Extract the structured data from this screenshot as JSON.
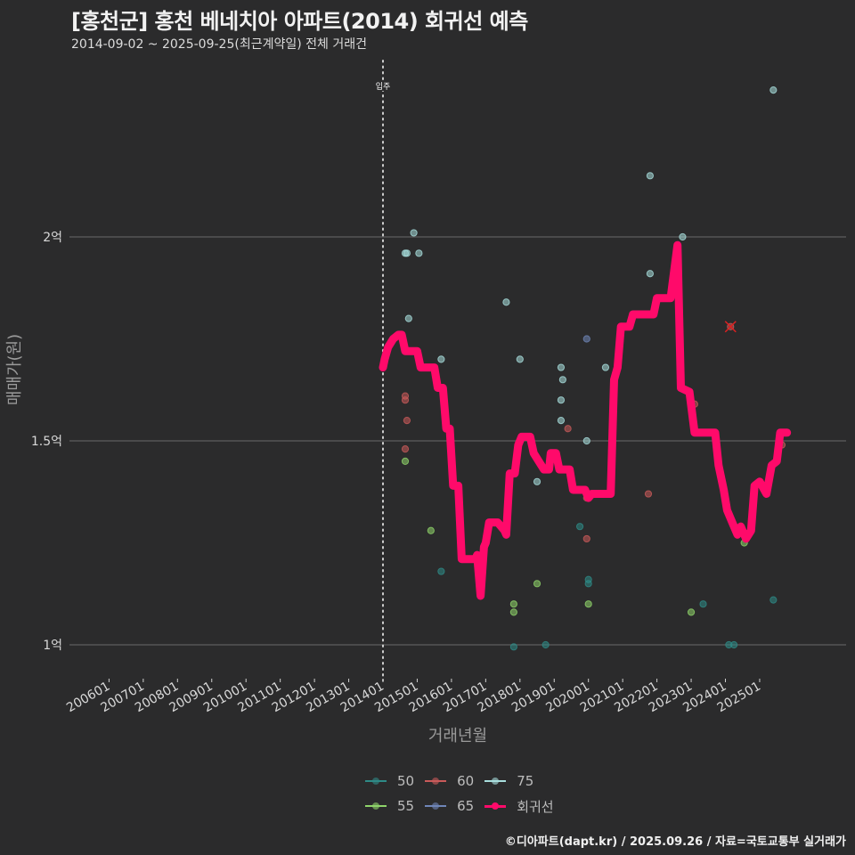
{
  "header": {
    "title": "[홍천군] 홍천 베네치아 아파트(2014) 회귀선 예측",
    "subtitle": "2014-09-02 ~ 2025-09-25(최근계약일) 전체 거래건"
  },
  "caption": "©디아파트(dapt.kr) / 2025.09.26 / 자료=국토교통부 실거래가",
  "colors": {
    "background": "#2b2b2c",
    "grid": "#6a6a6a",
    "regression": "#ff0a6a",
    "50": "#2e8b87",
    "55": "#8fd46a",
    "60": "#c95a5a",
    "65": "#6f86b8",
    "75": "#a8dedd"
  },
  "legend": {
    "items": [
      {
        "key": "50",
        "label": "50",
        "color": "#2e8b87"
      },
      {
        "key": "60",
        "label": "60",
        "color": "#c95a5a"
      },
      {
        "key": "75",
        "label": "75",
        "color": "#a8dedd"
      },
      {
        "key": "55",
        "label": "55",
        "color": "#8fd46a"
      },
      {
        "key": "65",
        "label": "65",
        "color": "#6f86b8"
      },
      {
        "key": "reg",
        "label": "회귀선",
        "color": "#ff0a6a"
      }
    ]
  },
  "chart_data": {
    "type": "scatter",
    "title": "[홍천군] 홍천 베네치아 아파트(2014) 회귀선 예측",
    "subtitle": "2014-09-02 ~ 2025-09-25(최근계약일) 전체 거래건",
    "xlabel": "거래년월",
    "ylabel": "매매가(원)",
    "x_ticks": [
      "200601",
      "200701",
      "200801",
      "200901",
      "201001",
      "201101",
      "201201",
      "201301",
      "201401",
      "201501",
      "201601",
      "201701",
      "201801",
      "201901",
      "202001",
      "202101",
      "202201",
      "202301",
      "202401",
      "202501"
    ],
    "y_ticks": [
      {
        "value": 10000,
        "label": "1억"
      },
      {
        "value": 15000,
        "label": "1.5억"
      },
      {
        "value": 20000,
        "label": "2억"
      }
    ],
    "ylim": [
      9250,
      23800
    ],
    "xlim": [
      2005.0,
      2026.3
    ],
    "grid": true,
    "annotation": {
      "x": 2014.0,
      "label": "입주",
      "style": "dotted-vertical"
    },
    "legend_position": "bottom",
    "series": [
      {
        "name": "50",
        "points": [
          [
            2015.7,
            11800
          ],
          [
            2017.82,
            9950
          ],
          [
            2018.75,
            10000
          ],
          [
            2020.0,
            11600
          ],
          [
            2020.0,
            11500
          ],
          [
            2023.35,
            11000
          ],
          [
            2024.1,
            10000
          ],
          [
            2024.25,
            10000
          ],
          [
            2025.4,
            11100
          ],
          [
            2019.75,
            12900
          ]
        ]
      },
      {
        "name": "55",
        "points": [
          [
            2014.65,
            14500
          ],
          [
            2015.4,
            12800
          ],
          [
            2017.82,
            11000
          ],
          [
            2017.82,
            10800
          ],
          [
            2018.5,
            11500
          ],
          [
            2020.0,
            11000
          ],
          [
            2023.0,
            10800
          ],
          [
            2024.55,
            12500
          ]
        ]
      },
      {
        "name": "60",
        "points": [
          [
            2014.65,
            16100
          ],
          [
            2014.65,
            16000
          ],
          [
            2014.7,
            15500
          ],
          [
            2014.65,
            14800
          ],
          [
            2019.4,
            15300
          ],
          [
            2019.95,
            13600
          ],
          [
            2019.95,
            12600
          ],
          [
            2021.75,
            13700
          ],
          [
            2023.1,
            15900
          ],
          [
            2024.15,
            17800
          ],
          [
            2025.65,
            14900
          ]
        ]
      },
      {
        "name": "65",
        "points": [
          [
            2019.95,
            17500
          ],
          [
            2022.65,
            18000
          ]
        ]
      },
      {
        "name": "75",
        "points": [
          [
            2014.9,
            20100
          ],
          [
            2014.65,
            19600
          ],
          [
            2014.7,
            19600
          ],
          [
            2015.05,
            19600
          ],
          [
            2014.75,
            18000
          ],
          [
            2015.7,
            17000
          ],
          [
            2017.6,
            18400
          ],
          [
            2018.0,
            17000
          ],
          [
            2018.5,
            14000
          ],
          [
            2019.2,
            16800
          ],
          [
            2019.2,
            16000
          ],
          [
            2019.25,
            16500
          ],
          [
            2019.2,
            15500
          ],
          [
            2019.95,
            15000
          ],
          [
            2020.5,
            16800
          ],
          [
            2021.8,
            19100
          ],
          [
            2021.8,
            21500
          ],
          [
            2022.75,
            20000
          ],
          [
            2025.4,
            23600
          ]
        ]
      }
    ],
    "regression": {
      "name": "회귀선",
      "points": [
        [
          2014.0,
          16800
        ],
        [
          2014.05,
          17000
        ],
        [
          2014.15,
          17300
        ],
        [
          2014.3,
          17500
        ],
        [
          2014.45,
          17600
        ],
        [
          2014.55,
          17600
        ],
        [
          2014.65,
          17200
        ],
        [
          2015.0,
          17200
        ],
        [
          2015.1,
          16800
        ],
        [
          2015.5,
          16800
        ],
        [
          2015.6,
          16300
        ],
        [
          2015.75,
          16300
        ],
        [
          2015.85,
          15300
        ],
        [
          2015.95,
          15300
        ],
        [
          2016.05,
          13900
        ],
        [
          2016.2,
          13900
        ],
        [
          2016.3,
          12100
        ],
        [
          2016.7,
          12100
        ],
        [
          2016.75,
          12200
        ],
        [
          2016.85,
          11200
        ],
        [
          2016.95,
          12400
        ],
        [
          2017.0,
          12500
        ],
        [
          2017.1,
          13000
        ],
        [
          2017.35,
          13000
        ],
        [
          2017.45,
          12900
        ],
        [
          2017.55,
          12800
        ],
        [
          2017.6,
          12700
        ],
        [
          2017.7,
          14200
        ],
        [
          2017.85,
          14200
        ],
        [
          2017.95,
          14900
        ],
        [
          2018.05,
          15100
        ],
        [
          2018.3,
          15100
        ],
        [
          2018.4,
          14700
        ],
        [
          2018.55,
          14500
        ],
        [
          2018.7,
          14300
        ],
        [
          2018.85,
          14300
        ],
        [
          2018.9,
          14700
        ],
        [
          2019.05,
          14700
        ],
        [
          2019.15,
          14300
        ],
        [
          2019.45,
          14300
        ],
        [
          2019.55,
          13800
        ],
        [
          2019.9,
          13800
        ],
        [
          2020.0,
          13600
        ],
        [
          2020.1,
          13700
        ],
        [
          2020.65,
          13700
        ],
        [
          2020.75,
          16500
        ],
        [
          2020.85,
          16800
        ],
        [
          2020.95,
          17800
        ],
        [
          2021.2,
          17800
        ],
        [
          2021.3,
          18100
        ],
        [
          2021.9,
          18100
        ],
        [
          2022.0,
          18500
        ],
        [
          2022.4,
          18500
        ],
        [
          2022.6,
          19800
        ],
        [
          2022.7,
          16300
        ],
        [
          2022.95,
          16200
        ],
        [
          2023.1,
          15200
        ],
        [
          2023.6,
          15200
        ],
        [
          2023.7,
          15200
        ],
        [
          2023.8,
          14400
        ],
        [
          2023.95,
          13800
        ],
        [
          2024.05,
          13300
        ],
        [
          2024.2,
          13000
        ],
        [
          2024.35,
          12700
        ],
        [
          2024.45,
          12900
        ],
        [
          2024.6,
          12600
        ],
        [
          2024.75,
          12800
        ],
        [
          2024.85,
          13900
        ],
        [
          2025.0,
          14000
        ],
        [
          2025.2,
          13700
        ],
        [
          2025.35,
          14400
        ],
        [
          2025.5,
          14500
        ],
        [
          2025.6,
          15200
        ],
        [
          2025.8,
          15200
        ]
      ]
    },
    "outlier_marker": {
      "x": 2024.15,
      "y": 17800,
      "style": "red-x"
    }
  },
  "axes": {
    "xlabel": "거래년월",
    "ylabel": "매매가(원)",
    "annotation_label": "입주"
  }
}
